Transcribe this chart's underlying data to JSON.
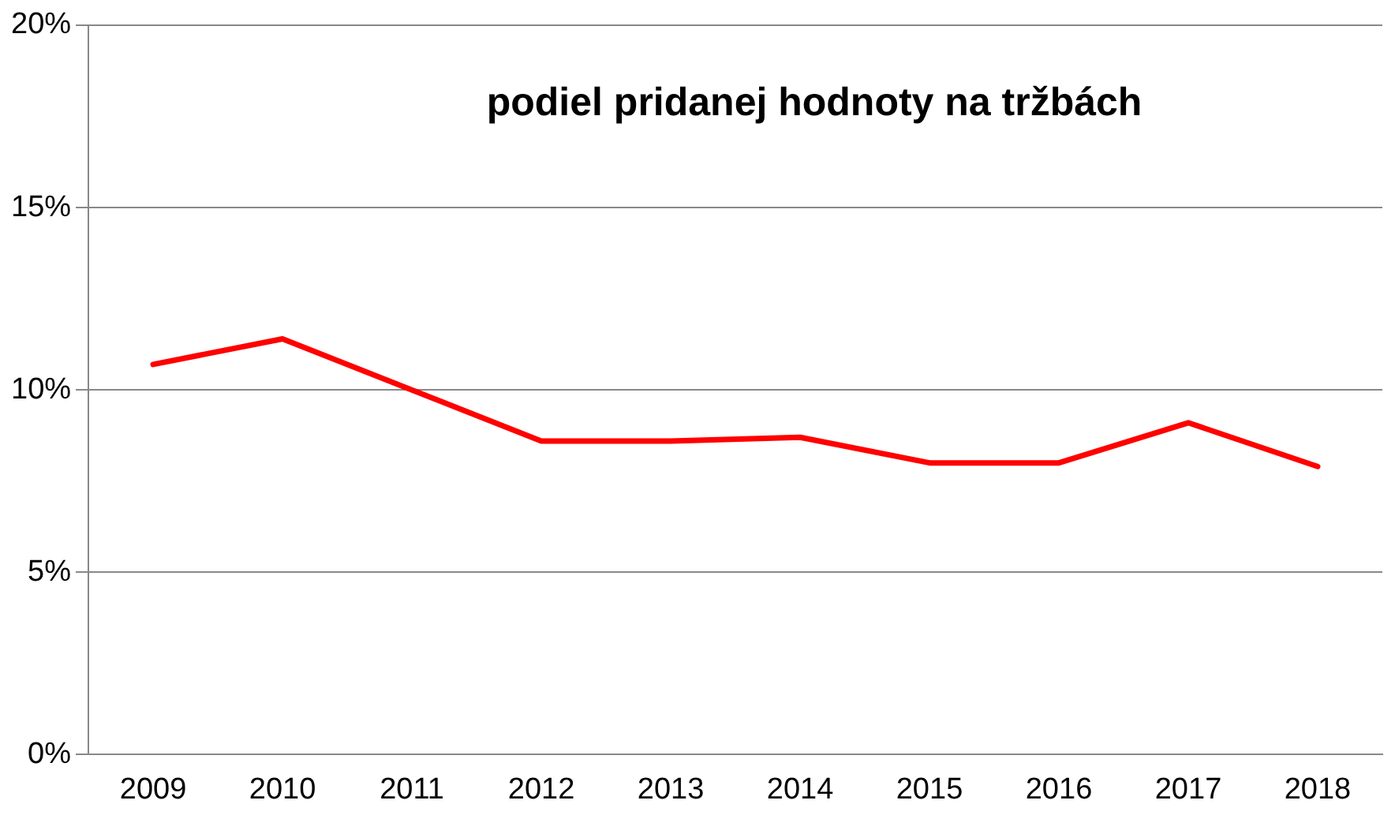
{
  "chart_data": {
    "type": "line",
    "title": "podiel pridanej hodnoty na tržbách",
    "categories": [
      "2009",
      "2010",
      "2011",
      "2012",
      "2013",
      "2014",
      "2015",
      "2016",
      "2017",
      "2018"
    ],
    "series": [
      {
        "color": "#ff0000",
        "values": [
          10.7,
          11.4,
          10.0,
          8.6,
          8.6,
          8.7,
          8.0,
          8.0,
          9.1,
          7.9
        ]
      }
    ],
    "ylim": [
      0,
      20
    ],
    "yticks": [
      {
        "value": 0,
        "label": "0%"
      },
      {
        "value": 5,
        "label": "5%"
      },
      {
        "value": 10,
        "label": "10%"
      },
      {
        "value": 15,
        "label": "15%"
      },
      {
        "value": 20,
        "label": "20%"
      }
    ],
    "grid": "y",
    "legend": false,
    "marker": "none",
    "line_style": "solid"
  }
}
